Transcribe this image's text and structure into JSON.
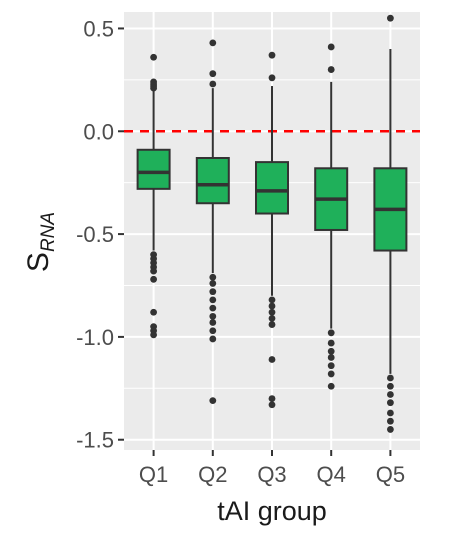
{
  "chart_data": {
    "type": "boxplot",
    "title": "",
    "xlabel": "tAI group",
    "ylabel": {
      "main": "S",
      "subscript": "RNA"
    },
    "categories": [
      "Q1",
      "Q2",
      "Q3",
      "Q4",
      "Q5"
    ],
    "ylim": [
      -1.55,
      0.58
    ],
    "y_ticks": [
      0.5,
      0.0,
      -0.5,
      -1.0,
      -1.5
    ],
    "y_tick_labels": [
      "0.5",
      "0.0",
      "-0.5",
      "-1.0",
      "-1.5"
    ],
    "grid": true,
    "reference_line": {
      "y": 0.0,
      "style": "dashed",
      "color": "#ff0000"
    },
    "box_fill": "#1fb05a",
    "box_stroke": "#333333",
    "panel_background": "#ebebeb",
    "series": [
      {
        "category": "Q1",
        "lower_whisker": -0.58,
        "q1": -0.28,
        "median": -0.2,
        "q3": -0.09,
        "upper_whisker": 0.2,
        "outliers": [
          0.36,
          0.24,
          0.23,
          0.22,
          0.21,
          -0.6,
          -0.62,
          -0.64,
          -0.66,
          -0.68,
          -0.72,
          -0.88,
          -0.95,
          -0.97,
          -0.99
        ]
      },
      {
        "category": "Q2",
        "lower_whisker": -0.69,
        "q1": -0.35,
        "median": -0.26,
        "q3": -0.13,
        "upper_whisker": 0.21,
        "outliers": [
          0.43,
          0.28,
          0.23,
          -0.71,
          -0.74,
          -0.78,
          -0.82,
          -0.86,
          -0.9,
          -0.93,
          -0.97,
          -1.01,
          -1.31
        ]
      },
      {
        "category": "Q3",
        "lower_whisker": -0.8,
        "q1": -0.4,
        "median": -0.29,
        "q3": -0.15,
        "upper_whisker": 0.22,
        "outliers": [
          0.37,
          0.26,
          -0.82,
          -0.85,
          -0.88,
          -0.91,
          -0.94,
          -1.11,
          -1.3,
          -1.33
        ]
      },
      {
        "category": "Q4",
        "lower_whisker": -0.96,
        "q1": -0.48,
        "median": -0.33,
        "q3": -0.18,
        "upper_whisker": 0.24,
        "outliers": [
          0.41,
          0.3,
          -0.98,
          -1.03,
          -1.07,
          -1.1,
          -1.14,
          -1.18,
          -1.24
        ]
      },
      {
        "category": "Q5",
        "lower_whisker": -1.18,
        "q1": -0.58,
        "median": -0.38,
        "q3": -0.18,
        "upper_whisker": 0.4,
        "outliers": [
          0.55,
          -1.2,
          -1.24,
          -1.28,
          -1.32,
          -1.37,
          -1.41,
          -1.45
        ]
      }
    ]
  }
}
